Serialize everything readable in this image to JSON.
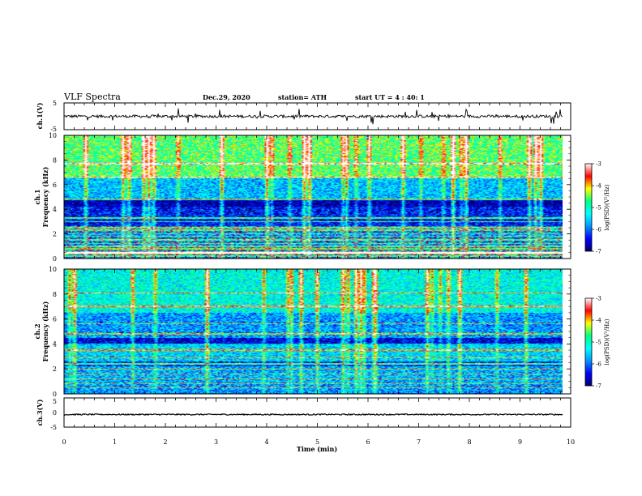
{
  "header": {
    "title": "VLF Spectra",
    "date": "Dec.29, 2020",
    "station": "station= ATH",
    "start": "start  UT =   4 : 40: 1"
  },
  "colors": {
    "spec_stops": [
      "#00006e",
      "#0000ff",
      "#0096ff",
      "#00ffff",
      "#00ff80",
      "#ffff00",
      "#ff0000",
      "#ffffff"
    ],
    "trace": "#000000"
  },
  "chart_data": [
    {
      "type": "line",
      "panel": "ch1-waveform",
      "ylabel": "ch.1(V)",
      "xlim": [
        0,
        10
      ],
      "ylim": [
        -5,
        5
      ],
      "yticks": [
        "5",
        "-5"
      ],
      "series": [
        {
          "mean": 0,
          "noise_range": [
            -1.5,
            1.5
          ],
          "spike_range": [
            -3,
            3
          ]
        }
      ]
    },
    {
      "type": "heatmap",
      "panel": "ch1-spectrogram",
      "ylabel": "ch.1\nFrequency (kHz)",
      "xlim": [
        0,
        9.84
      ],
      "ylim": [
        0,
        10
      ],
      "yticks": [
        "0",
        "2",
        "4",
        "6",
        "8",
        "10"
      ],
      "value_range": [
        -7,
        -3
      ],
      "colorbar": {
        "label": "log(PSD)(V²/Hz)",
        "ticks": [
          "-3",
          "-4",
          "-5",
          "-6",
          "-7"
        ]
      },
      "bands": [
        {
          "f": [
            0,
            0.3
          ],
          "v": -6.0
        },
        {
          "f": [
            0.3,
            0.6
          ],
          "v": -4.0
        },
        {
          "f": [
            0.6,
            2.6
          ],
          "v": -5.9
        },
        {
          "f": [
            2.6,
            4.2
          ],
          "v": -6.4
        },
        {
          "f": [
            4.2,
            4.8
          ],
          "v": -6.8
        },
        {
          "f": [
            4.8,
            6.5
          ],
          "v": -5.6
        },
        {
          "f": [
            6.5,
            10
          ],
          "v": -4.6
        }
      ],
      "lines_khz": [
        0.2,
        0.45,
        0.5,
        0.8,
        1.0,
        1.2,
        1.5,
        1.8,
        2.0,
        2.3,
        2.5,
        3.0,
        3.3,
        4.8,
        6.6,
        7.7
      ]
    },
    {
      "type": "heatmap",
      "panel": "ch2-spectrogram",
      "ylabel": "ch.2\nFrequency (kHz)",
      "xlim": [
        0,
        9.84
      ],
      "ylim": [
        0,
        10
      ],
      "yticks": [
        "0",
        "2",
        "4",
        "6",
        "8",
        "10"
      ],
      "value_range": [
        -7,
        -3
      ],
      "colorbar": {
        "label": "log(PSD)(V²/Hz)",
        "ticks": [
          "-3",
          "-4",
          "-5",
          "-6",
          "-7"
        ]
      },
      "bands": [
        {
          "f": [
            0,
            0.8
          ],
          "v": -5.8
        },
        {
          "f": [
            0.8,
            2.2
          ],
          "v": -5.7
        },
        {
          "f": [
            2.2,
            2.6
          ],
          "v": -6.3
        },
        {
          "f": [
            2.6,
            4.0
          ],
          "v": -5.5
        },
        {
          "f": [
            4.0,
            4.5
          ],
          "v": -6.6
        },
        {
          "f": [
            4.5,
            6.5
          ],
          "v": -5.8
        },
        {
          "f": [
            6.5,
            10
          ],
          "v": -5.2
        }
      ],
      "lines_khz": [
        0.5,
        0.8,
        1.2,
        1.6,
        2.0,
        2.4,
        2.9,
        3.5,
        4.8,
        5.6,
        7.0,
        8.1
      ]
    },
    {
      "type": "line",
      "panel": "ch3-waveform",
      "ylabel": "ch.3(V)",
      "xlim": [
        0,
        10
      ],
      "ylim": [
        -5,
        5
      ],
      "yticks": [
        "5",
        "0",
        "-5"
      ],
      "series": [
        {
          "mean": -0.5,
          "noise_range": [
            -1.1,
            0.1
          ]
        }
      ]
    }
  ],
  "xaxis": {
    "label": "Time (min)",
    "ticks": [
      "0",
      "1",
      "2",
      "3",
      "4",
      "5",
      "6",
      "7",
      "8",
      "9",
      "10"
    ],
    "range": [
      0,
      10
    ]
  }
}
